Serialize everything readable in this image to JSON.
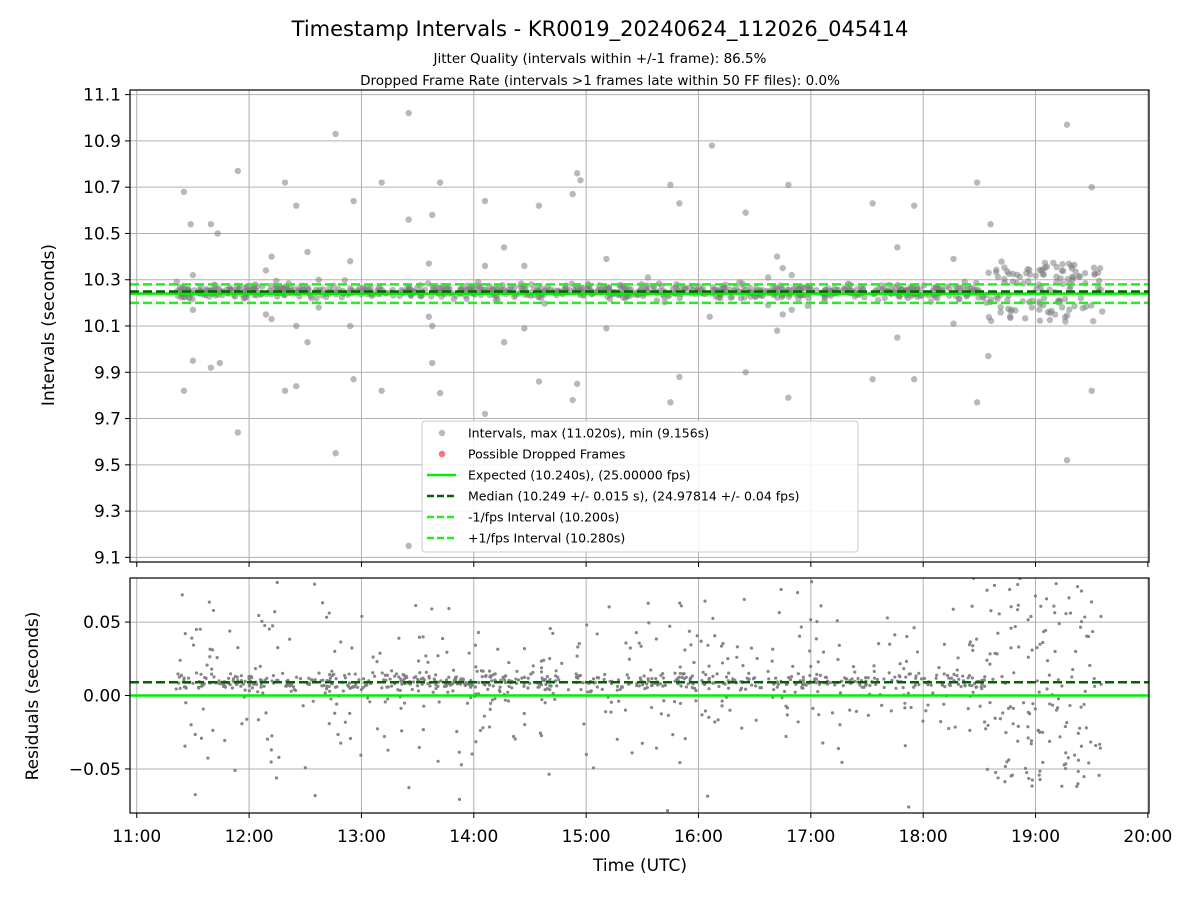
{
  "chart_data": {
    "title": "Timestamp Intervals - KR0019_20240624_112026_045414",
    "subtitle_lines": [
      "Jitter Quality (intervals within +/-1 frame): 86.5%",
      "Dropped Frame Rate (intervals >1 frames late within 50 FF files): 0.0%"
    ],
    "xlabel": "Time (UTC)",
    "x_ticks": [
      "11:00",
      "12:00",
      "13:00",
      "14:00",
      "15:00",
      "16:00",
      "17:00",
      "18:00",
      "19:00",
      "20:00"
    ],
    "xlim_hours": [
      10.94,
      20.01
    ],
    "grid": true,
    "colors": {
      "points": "#808080",
      "dropped": "#ff4040",
      "expected": "#00ee00",
      "median": "#006400",
      "bounds": "#22ee22",
      "grid": "#b0b0b0"
    },
    "panels": [
      {
        "type": "scatter",
        "ylabel": "Intervals (seconds)",
        "ylim": [
          9.08,
          11.12
        ],
        "y_ticks": [
          "9.1",
          "9.3",
          "9.5",
          "9.7",
          "9.9",
          "10.1",
          "10.3",
          "10.5",
          "10.7",
          "10.9",
          "11.1"
        ],
        "lines": {
          "expected": 10.24,
          "median": 10.249,
          "lower": 10.2,
          "upper": 10.28
        },
        "cluster": {
          "center": 10.249,
          "spread": 0.028,
          "dense_spread": 0.13,
          "dense_start_hour": 18.55,
          "end_hour": 19.6,
          "start_hour": 11.35
        },
        "outliers": [
          [
            11.42,
            10.68
          ],
          [
            11.48,
            10.54
          ],
          [
            11.5,
            9.95
          ],
          [
            11.42,
            9.82
          ],
          [
            11.66,
            10.54
          ],
          [
            11.66,
            9.92
          ],
          [
            11.72,
            10.5
          ],
          [
            11.74,
            9.94
          ],
          [
            11.9,
            10.77
          ],
          [
            11.9,
            9.64
          ],
          [
            12.32,
            10.72
          ],
          [
            12.32,
            9.82
          ],
          [
            12.42,
            10.62
          ],
          [
            12.42,
            9.84
          ],
          [
            12.42,
            10.1
          ],
          [
            12.52,
            10.42
          ],
          [
            12.52,
            10.03
          ],
          [
            12.77,
            10.93
          ],
          [
            12.77,
            9.55
          ],
          [
            12.93,
            10.64
          ],
          [
            12.93,
            9.87
          ],
          [
            12.9,
            10.38
          ],
          [
            12.9,
            10.1
          ],
          [
            13.18,
            10.72
          ],
          [
            13.18,
            9.82
          ],
          [
            13.42,
            11.02
          ],
          [
            13.42,
            10.56
          ],
          [
            13.42,
            9.15
          ],
          [
            13.63,
            10.58
          ],
          [
            13.63,
            9.94
          ],
          [
            13.63,
            10.1
          ],
          [
            13.7,
            10.72
          ],
          [
            13.7,
            9.81
          ],
          [
            14.1,
            10.64
          ],
          [
            14.1,
            9.72
          ],
          [
            14.27,
            10.44
          ],
          [
            14.27,
            10.03
          ],
          [
            14.45,
            10.09
          ],
          [
            14.58,
            10.62
          ],
          [
            14.58,
            9.86
          ],
          [
            14.88,
            10.67
          ],
          [
            14.88,
            9.78
          ],
          [
            14.92,
            10.76
          ],
          [
            14.92,
            9.85
          ],
          [
            14.95,
            10.73
          ],
          [
            15.18,
            10.39
          ],
          [
            15.18,
            10.09
          ],
          [
            15.55,
            10.31
          ],
          [
            15.75,
            10.71
          ],
          [
            15.75,
            9.77
          ],
          [
            15.83,
            10.63
          ],
          [
            15.83,
            9.88
          ],
          [
            16.12,
            10.88
          ],
          [
            16.1,
            10.14
          ],
          [
            16.42,
            10.59
          ],
          [
            16.42,
            9.9
          ],
          [
            16.7,
            10.4
          ],
          [
            16.7,
            10.08
          ],
          [
            16.8,
            10.71
          ],
          [
            16.8,
            9.79
          ],
          [
            17.55,
            10.63
          ],
          [
            17.55,
            9.87
          ],
          [
            17.77,
            10.44
          ],
          [
            17.77,
            10.05
          ],
          [
            17.92,
            10.62
          ],
          [
            17.92,
            9.87
          ],
          [
            18.27,
            10.39
          ],
          [
            18.27,
            10.11
          ],
          [
            18.48,
            10.72
          ],
          [
            18.48,
            9.77
          ],
          [
            19.28,
            10.97
          ],
          [
            19.28,
            9.52
          ],
          [
            19.5,
            10.7
          ],
          [
            19.5,
            9.82
          ],
          [
            11.5,
            10.32
          ],
          [
            11.5,
            10.17
          ],
          [
            12.15,
            10.34
          ],
          [
            12.15,
            10.15
          ],
          [
            12.2,
            10.4
          ],
          [
            12.2,
            10.13
          ],
          [
            12.62,
            10.3
          ],
          [
            12.62,
            10.18
          ],
          [
            13.6,
            10.37
          ],
          [
            13.6,
            10.14
          ],
          [
            14.1,
            10.36
          ],
          [
            14.45,
            10.36
          ],
          [
            16.62,
            10.31
          ],
          [
            16.62,
            10.19
          ],
          [
            16.75,
            10.35
          ],
          [
            16.75,
            10.15
          ],
          [
            16.83,
            10.32
          ],
          [
            16.83,
            10.17
          ],
          [
            18.6,
            10.54
          ],
          [
            18.58,
            9.97
          ]
        ],
        "legend": [
          "Intervals, max (11.020s), min (9.156s)",
          "Possible Dropped Frames",
          "Expected (10.240s), (25.00000 fps)",
          "Median (10.249 +/- 0.015 s), (24.97814 +/- 0.04 fps)",
          "-1/fps Interval (10.200s)",
          "+1/fps Interval (10.280s)"
        ]
      },
      {
        "type": "scatter",
        "ylabel": "Residuals (seconds)",
        "ylim": [
          -0.08,
          0.08
        ],
        "y_ticks": [
          "−0.05",
          "0.00",
          "0.05"
        ],
        "y_tick_values": [
          -0.05,
          0.0,
          0.05
        ],
        "lines": {
          "expected": 0.0,
          "median": 0.009
        },
        "cluster": {
          "center": 0.009,
          "spread": 0.0055,
          "scatter_spread": 0.03,
          "dense_start_hour": 18.55,
          "dense_spread": 0.055,
          "end_hour": 19.6,
          "start_hour": 11.35
        }
      }
    ]
  }
}
